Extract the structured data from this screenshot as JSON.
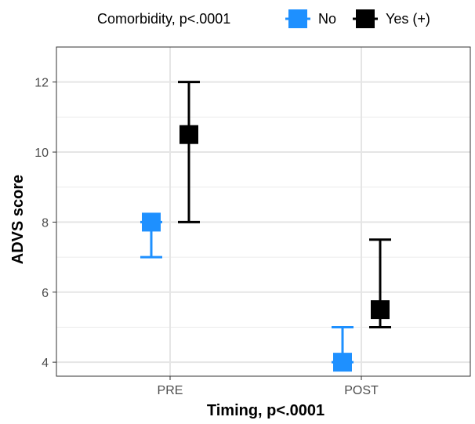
{
  "chart_data": {
    "type": "scatter",
    "x_categories": [
      "PRE",
      "POST"
    ],
    "xlabel": "Timing, p<.0001",
    "ylabel": "ADVS score",
    "ylim": [
      3.6,
      13
    ],
    "yticks": [
      "4",
      "6",
      "8",
      "10",
      "12"
    ],
    "ytick_values": [
      4,
      6,
      8,
      10,
      12
    ],
    "grid": true,
    "legend": {
      "title": "Comorbidity, p<.0001",
      "position": "top",
      "entries": [
        "No",
        "Yes (+)"
      ]
    },
    "series": [
      {
        "name": "No",
        "color": "#1e90ff",
        "points": [
          {
            "x": "PRE",
            "y": 8,
            "lower": 7,
            "upper": 8
          },
          {
            "x": "POST",
            "y": 4,
            "lower": 4,
            "upper": 5
          }
        ]
      },
      {
        "name": "Yes (+)",
        "color": "#000000",
        "points": [
          {
            "x": "PRE",
            "y": 10.5,
            "lower": 8,
            "upper": 12
          },
          {
            "x": "POST",
            "y": 5.5,
            "lower": 5,
            "upper": 7.5
          }
        ]
      }
    ]
  }
}
